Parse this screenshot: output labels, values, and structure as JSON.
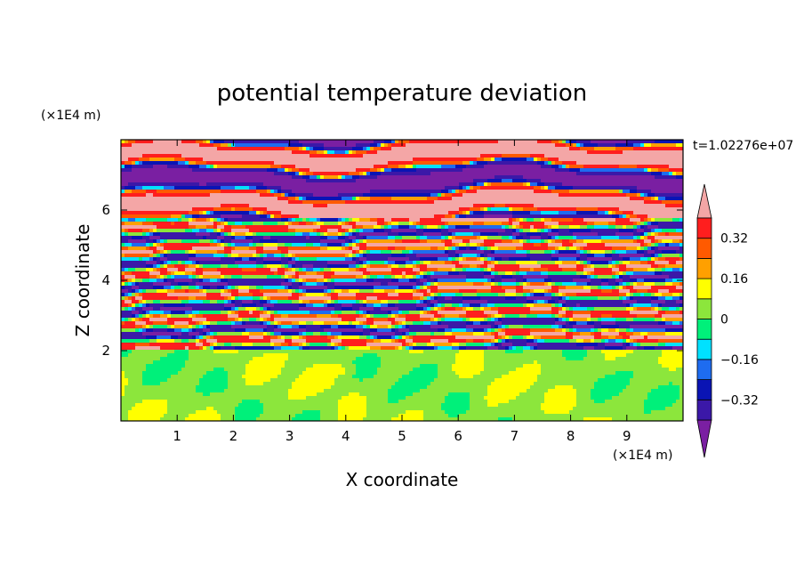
{
  "chart_data": {
    "type": "heatmap",
    "title": "potential temperature deviation",
    "xlabel": "X coordinate",
    "ylabel": "Z coordinate",
    "x_unit": "(×1E4 m)",
    "y_unit": "(×1E4 m)",
    "time_label": "t=1.02276e+07",
    "xlim": [
      0,
      10
    ],
    "ylim": [
      0,
      8
    ],
    "x_ticks": [
      1,
      2,
      3,
      4,
      5,
      6,
      7,
      8,
      9
    ],
    "y_ticks": [
      2,
      4,
      6
    ],
    "colorbar": {
      "levels": [
        -0.4,
        -0.32,
        -0.24,
        -0.16,
        -0.08,
        0,
        0.08,
        0.16,
        0.24,
        0.32,
        0.4
      ],
      "tick_labels": [
        "0.32",
        "0.16",
        "0",
        "−0.16",
        "−0.32"
      ],
      "tick_values": [
        0.32,
        0.16,
        0,
        -0.16,
        -0.32
      ],
      "colors": [
        "#7a1fa2",
        "#3b18a8",
        "#0a14b4",
        "#1e6cf0",
        "#00e1ff",
        "#00f07a",
        "#8ce63c",
        "#ffff00",
        "#ffa000",
        "#ff5a00",
        "#ff1e1e",
        "#f4a6a6"
      ],
      "extend": "both"
    },
    "structure": [
      {
        "z_range": [
          0,
          2.0
        ],
        "description_level": "near-neutral layer, values about 0 to 0.1"
      },
      {
        "z_range": [
          2.0,
          5.8
        ],
        "description_level": "multi-colored stratified wave layer, full range"
      },
      {
        "z_range": [
          5.8,
          8.0
        ],
        "description_level": "alternating bands near -0.4 and +0.4"
      }
    ]
  }
}
